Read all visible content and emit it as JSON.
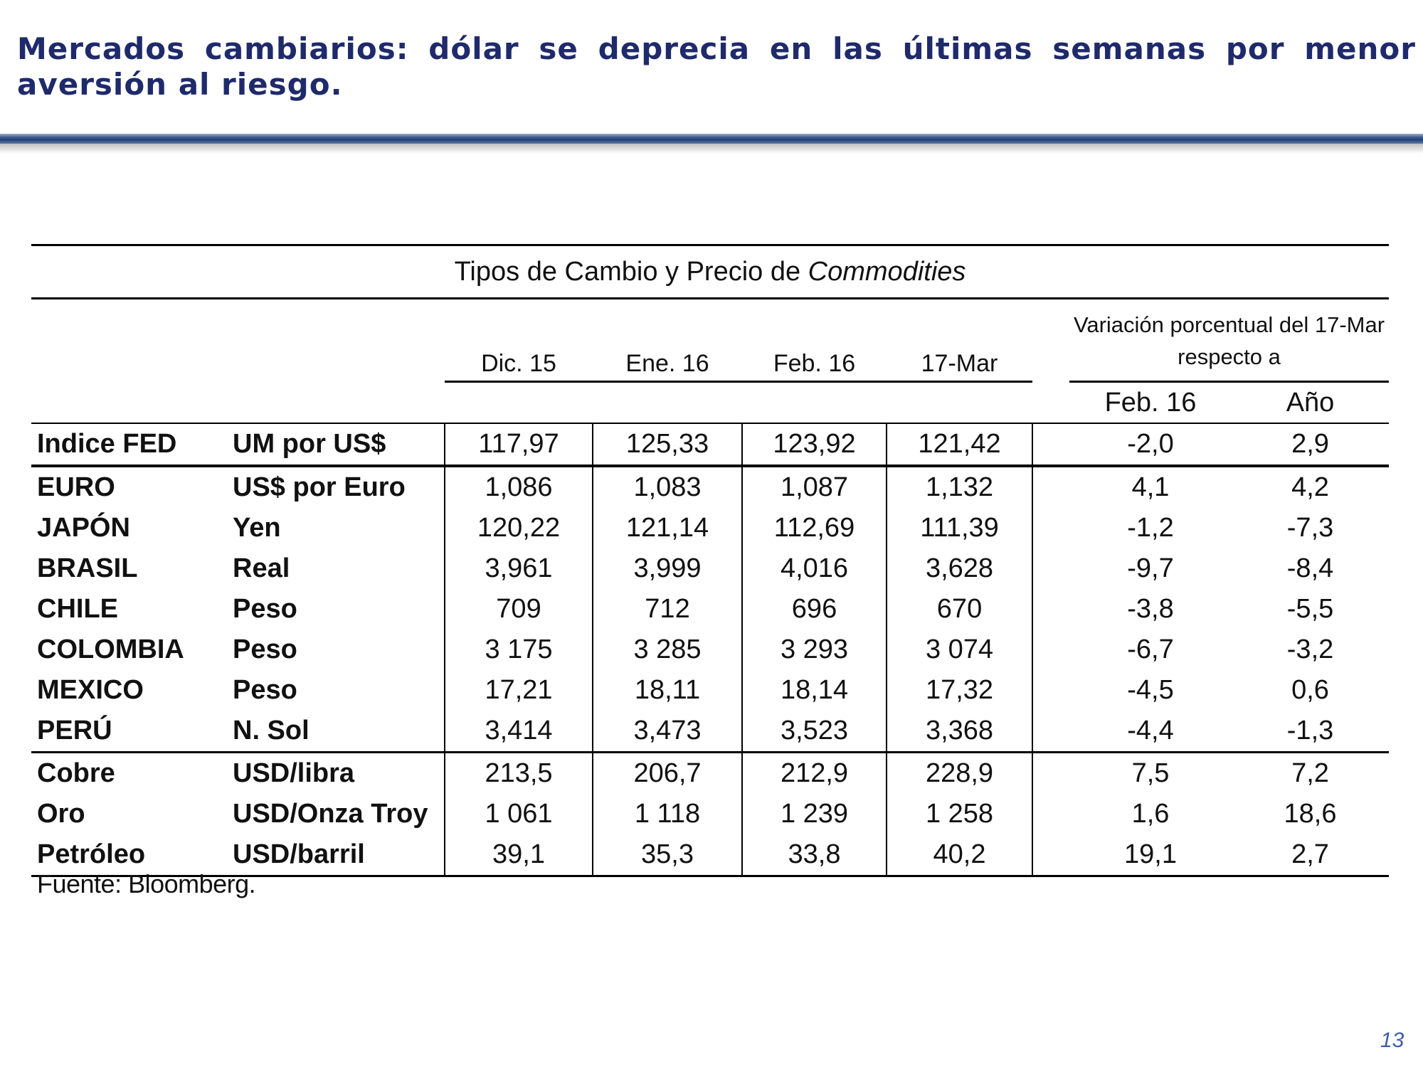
{
  "title": "Mercados cambiarios: dólar se deprecia en las últimas semanas por menor aversión al riesgo.",
  "table": {
    "caption_prefix": "Tipos de Cambio y Precio de ",
    "caption_italic": "Commodities",
    "columns": [
      "Dic. 15",
      "Ene. 16",
      "Feb. 16",
      "17-Mar"
    ],
    "variation_header": "Variación porcentual del 17-Mar respecto a",
    "variation_columns": [
      "Feb. 16",
      "Año"
    ],
    "rows": [
      {
        "name": "Indice FED",
        "unit": "UM por US$",
        "values": [
          "117,97",
          "125,33",
          "123,92",
          "121,42"
        ],
        "var": [
          "-2,0",
          "2,9"
        ]
      },
      {
        "name": "EURO",
        "unit": "US$ por Euro",
        "values": [
          "1,086",
          "1,083",
          "1,087",
          "1,132"
        ],
        "var": [
          "4,1",
          "4,2"
        ]
      },
      {
        "name": "JAPÓN",
        "unit": "Yen",
        "values": [
          "120,22",
          "121,14",
          "112,69",
          "111,39"
        ],
        "var": [
          "-1,2",
          "-7,3"
        ]
      },
      {
        "name": "BRASIL",
        "unit": "Real",
        "values": [
          "3,961",
          "3,999",
          "4,016",
          "3,628"
        ],
        "var": [
          "-9,7",
          "-8,4"
        ]
      },
      {
        "name": "CHILE",
        "unit": "Peso",
        "values": [
          "709",
          "712",
          "696",
          "670"
        ],
        "var": [
          "-3,8",
          "-5,5"
        ]
      },
      {
        "name": "COLOMBIA",
        "unit": "Peso",
        "values": [
          "3 175",
          "3 285",
          "3 293",
          "3 074"
        ],
        "var": [
          "-6,7",
          "-3,2"
        ]
      },
      {
        "name": "MEXICO",
        "unit": "Peso",
        "values": [
          "17,21",
          "18,11",
          "18,14",
          "17,32"
        ],
        "var": [
          "-4,5",
          "0,6"
        ]
      },
      {
        "name": "PERÚ",
        "unit": "N. Sol",
        "values": [
          "3,414",
          "3,473",
          "3,523",
          "3,368"
        ],
        "var": [
          "-4,4",
          "-1,3"
        ]
      },
      {
        "name": "Cobre",
        "unit": "USD/libra",
        "values": [
          "213,5",
          "206,7",
          "212,9",
          "228,9"
        ],
        "var": [
          "7,5",
          "7,2"
        ]
      },
      {
        "name": "Oro",
        "unit": "USD/Onza Troy",
        "values": [
          "1 061",
          "1 118",
          "1 239",
          "1 258"
        ],
        "var": [
          "1,6",
          "18,6"
        ]
      },
      {
        "name": "Petróleo",
        "unit": "USD/barril",
        "values": [
          "39,1",
          "35,3",
          "33,8",
          "40,2"
        ],
        "var": [
          "19,1",
          "2,7"
        ]
      }
    ]
  },
  "source": "Fuente: Bloomberg.",
  "page_number": "13"
}
